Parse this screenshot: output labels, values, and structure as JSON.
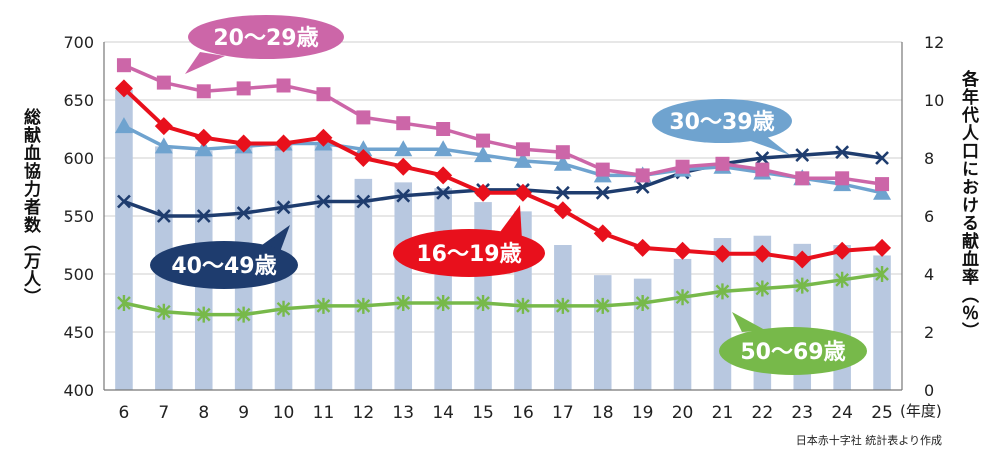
{
  "chart_data": {
    "type": "bar+line",
    "x": [
      "6",
      "7",
      "8",
      "9",
      "10",
      "11",
      "12",
      "13",
      "14",
      "15",
      "16",
      "17",
      "18",
      "19",
      "20",
      "21",
      "22",
      "23",
      "24",
      "25"
    ],
    "x_unit": "(年度)",
    "left_axis": {
      "label": "総献血協力者数（万人）",
      "ylim": [
        400,
        700
      ],
      "ticks": [
        400,
        450,
        500,
        550,
        600,
        650,
        700
      ]
    },
    "right_axis": {
      "label": "各年代人口における献血率（％）",
      "ylim": [
        0,
        12
      ],
      "ticks": [
        0,
        2,
        4,
        6,
        8,
        10,
        12
      ]
    },
    "bars": {
      "axis": "left",
      "color": "#b8c8e0",
      "values": [
        659,
        610,
        606,
        609,
        613,
        612,
        582,
        579,
        574,
        562,
        554,
        525,
        499,
        496,
        513,
        531,
        533,
        526,
        525,
        516
      ]
    },
    "series": [
      {
        "name": "16〜19歳",
        "axis": "right",
        "color": "#e8101c",
        "marker": "diamond",
        "values": [
          10.4,
          9.1,
          8.7,
          8.5,
          8.5,
          8.7,
          8.0,
          7.7,
          7.4,
          6.8,
          6.8,
          6.2,
          5.4,
          4.9,
          4.8,
          4.7,
          4.7,
          4.5,
          4.8,
          4.9
        ]
      },
      {
        "name": "20〜29歳",
        "axis": "right",
        "color": "#cc66a8",
        "marker": "square",
        "values": [
          11.2,
          10.6,
          10.3,
          10.4,
          10.5,
          10.2,
          9.4,
          9.2,
          9.0,
          8.6,
          8.3,
          8.2,
          7.6,
          7.4,
          7.7,
          7.8,
          7.6,
          7.3,
          7.3,
          7.1
        ]
      },
      {
        "name": "30〜39歳",
        "axis": "right",
        "color": "#6fa3cf",
        "marker": "triangle",
        "values": [
          9.1,
          8.4,
          8.3,
          8.4,
          8.5,
          8.5,
          8.3,
          8.3,
          8.3,
          8.1,
          7.9,
          7.8,
          7.4,
          7.4,
          7.6,
          7.7,
          7.5,
          7.3,
          7.1,
          6.8
        ]
      },
      {
        "name": "40〜49歳",
        "axis": "right",
        "color": "#1e3c6e",
        "marker": "x",
        "values": [
          6.5,
          6.0,
          6.0,
          6.1,
          6.3,
          6.5,
          6.5,
          6.7,
          6.8,
          6.9,
          6.9,
          6.8,
          6.8,
          7.0,
          7.5,
          7.8,
          8.0,
          8.1,
          8.2,
          8.0
        ]
      },
      {
        "name": "50〜69歳",
        "axis": "right",
        "color": "#77b94a",
        "marker": "asterisk",
        "values": [
          3.0,
          2.7,
          2.6,
          2.6,
          2.8,
          2.9,
          2.9,
          3.0,
          3.0,
          3.0,
          2.9,
          2.9,
          2.9,
          3.0,
          3.2,
          3.4,
          3.5,
          3.6,
          3.8,
          4.0
        ]
      }
    ],
    "callouts": [
      {
        "series": "20〜29歳",
        "text": "20〜29歳",
        "fill": "#cc66a8"
      },
      {
        "series": "30〜39歳",
        "text": "30〜39歳",
        "fill": "#6fa3cf"
      },
      {
        "series": "40〜49歳",
        "text": "40〜49歳",
        "fill": "#1e3c6e"
      },
      {
        "series": "16〜19歳",
        "text": "16〜19歳",
        "fill": "#e8101c"
      },
      {
        "series": "50〜69歳",
        "text": "50〜69歳",
        "fill": "#77b94a"
      }
    ],
    "grid": true,
    "source": "日本赤十字社 統計表より作成"
  }
}
